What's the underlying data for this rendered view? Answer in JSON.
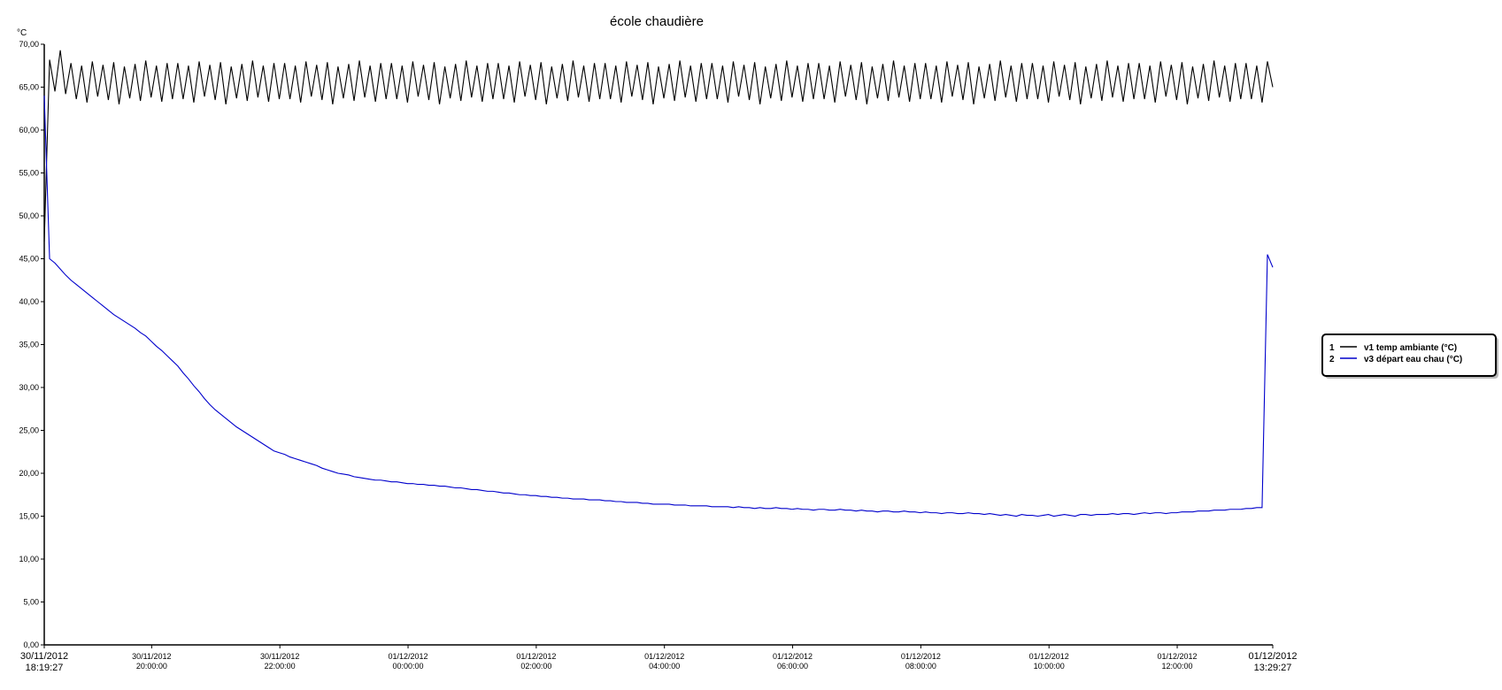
{
  "chart_data": {
    "type": "line",
    "title": "école chaudière",
    "y_label": "°C",
    "xlim": [
      "2012-11-30T18:19:27",
      "2012-12-01T13:29:27"
    ],
    "xticks": [
      {
        "value": "2012-11-30T18:19:27",
        "label": "30/11/2012 18:19:27"
      },
      {
        "value": "2012-11-30T20:00:00",
        "label": "30/11/2012 20:00:00"
      },
      {
        "value": "2012-11-30T22:00:00",
        "label": "30/11/2012 22:00:00"
      },
      {
        "value": "2012-12-01T00:00:00",
        "label": "01/12/2012 00:00:00"
      },
      {
        "value": "2012-12-01T02:00:00",
        "label": "01/12/2012 02:00:00"
      },
      {
        "value": "2012-12-01T04:00:00",
        "label": "01/12/2012 04:00:00"
      },
      {
        "value": "2012-12-01T06:00:00",
        "label": "01/12/2012 06:00:00"
      },
      {
        "value": "2012-12-01T08:00:00",
        "label": "01/12/2012 08:00:00"
      },
      {
        "value": "2012-12-01T10:00:00",
        "label": "01/12/2012 10:00:00"
      },
      {
        "value": "2012-12-01T12:00:00",
        "label": "01/12/2012 12:00:00"
      },
      {
        "value": "2012-12-01T13:29:27",
        "label": "01/12/2012 13:29:27"
      }
    ],
    "ylim": [
      0,
      70
    ],
    "yticks": [
      {
        "value": 0,
        "label": "0,00"
      },
      {
        "value": 5,
        "label": "5,00"
      },
      {
        "value": 10,
        "label": "10,00"
      },
      {
        "value": 15,
        "label": "15,00"
      },
      {
        "value": 20,
        "label": "20,00"
      },
      {
        "value": 25,
        "label": "25,00"
      },
      {
        "value": 30,
        "label": "30,00"
      },
      {
        "value": 35,
        "label": "35,00"
      },
      {
        "value": 40,
        "label": "40,00"
      },
      {
        "value": 45,
        "label": "45,00"
      },
      {
        "value": 50,
        "label": "50,00"
      },
      {
        "value": 55,
        "label": "55,00"
      },
      {
        "value": 60,
        "label": "60,00"
      },
      {
        "value": 65,
        "label": "65,00"
      },
      {
        "value": 70,
        "label": "70,00"
      }
    ],
    "legend": "right",
    "x": [
      "2012-11-30T18:19:27",
      "2012-11-30T18:24:27",
      "2012-11-30T18:29:27",
      "2012-11-30T18:34:27",
      "2012-11-30T18:39:27",
      "2012-11-30T18:44:27",
      "2012-11-30T18:49:27",
      "2012-11-30T18:54:27",
      "2012-11-30T18:59:27",
      "2012-11-30T19:04:27",
      "2012-11-30T19:09:27",
      "2012-11-30T19:14:27",
      "2012-11-30T19:19:27",
      "2012-11-30T19:24:27",
      "2012-11-30T19:29:27",
      "2012-11-30T19:34:27",
      "2012-11-30T19:39:27",
      "2012-11-30T19:44:27",
      "2012-11-30T19:49:27",
      "2012-11-30T19:54:27",
      "2012-11-30T19:59:27",
      "2012-11-30T20:04:27",
      "2012-11-30T20:09:27",
      "2012-11-30T20:14:27",
      "2012-11-30T20:19:27",
      "2012-11-30T20:24:27",
      "2012-11-30T20:29:27",
      "2012-11-30T20:34:27",
      "2012-11-30T20:39:27",
      "2012-11-30T20:44:27",
      "2012-11-30T20:49:27",
      "2012-11-30T20:54:27",
      "2012-11-30T20:59:27",
      "2012-11-30T21:04:27",
      "2012-11-30T21:09:27",
      "2012-11-30T21:14:27",
      "2012-11-30T21:19:27",
      "2012-11-30T21:24:27",
      "2012-11-30T21:29:27",
      "2012-11-30T21:34:27",
      "2012-11-30T21:39:27",
      "2012-11-30T21:44:27",
      "2012-11-30T21:49:27",
      "2012-11-30T21:54:27",
      "2012-11-30T21:59:27",
      "2012-11-30T22:04:27",
      "2012-11-30T22:09:27",
      "2012-11-30T22:14:27",
      "2012-11-30T22:19:27",
      "2012-11-30T22:24:27",
      "2012-11-30T22:29:27",
      "2012-11-30T22:34:27",
      "2012-11-30T22:39:27",
      "2012-11-30T22:44:27",
      "2012-11-30T22:49:27",
      "2012-11-30T22:54:27",
      "2012-11-30T22:59:27",
      "2012-11-30T23:04:27",
      "2012-11-30T23:09:27",
      "2012-11-30T23:14:27",
      "2012-11-30T23:19:27",
      "2012-11-30T23:24:27",
      "2012-11-30T23:29:27",
      "2012-11-30T23:34:27",
      "2012-11-30T23:39:27",
      "2012-11-30T23:44:27",
      "2012-11-30T23:49:27",
      "2012-11-30T23:54:27",
      "2012-11-30T23:59:27",
      "2012-12-01T00:04:27",
      "2012-12-01T00:09:27",
      "2012-12-01T00:14:27",
      "2012-12-01T00:19:27",
      "2012-12-01T00:24:27",
      "2012-12-01T00:29:27",
      "2012-12-01T00:34:27",
      "2012-12-01T00:39:27",
      "2012-12-01T00:44:27",
      "2012-12-01T00:49:27",
      "2012-12-01T00:54:27",
      "2012-12-01T00:59:27",
      "2012-12-01T01:04:27",
      "2012-12-01T01:09:27",
      "2012-12-01T01:14:27",
      "2012-12-01T01:19:27",
      "2012-12-01T01:24:27",
      "2012-12-01T01:29:27",
      "2012-12-01T01:34:27",
      "2012-12-01T01:39:27",
      "2012-12-01T01:44:27",
      "2012-12-01T01:49:27",
      "2012-12-01T01:54:27",
      "2012-12-01T01:59:27",
      "2012-12-01T02:04:27",
      "2012-12-01T02:09:27",
      "2012-12-01T02:14:27",
      "2012-12-01T02:19:27",
      "2012-12-01T02:24:27",
      "2012-12-01T02:29:27",
      "2012-12-01T02:34:27",
      "2012-12-01T02:39:27",
      "2012-12-01T02:44:27",
      "2012-12-01T02:49:27",
      "2012-12-01T02:54:27",
      "2012-12-01T02:59:27",
      "2012-12-01T03:04:27",
      "2012-12-01T03:09:27",
      "2012-12-01T03:14:27",
      "2012-12-01T03:19:27",
      "2012-12-01T03:24:27",
      "2012-12-01T03:29:27",
      "2012-12-01T03:34:27",
      "2012-12-01T03:39:27",
      "2012-12-01T03:44:27",
      "2012-12-01T03:49:27",
      "2012-12-01T03:54:27",
      "2012-12-01T03:59:27",
      "2012-12-01T04:04:27",
      "2012-12-01T04:09:27",
      "2012-12-01T04:14:27",
      "2012-12-01T04:19:27",
      "2012-12-01T04:24:27",
      "2012-12-01T04:29:27",
      "2012-12-01T04:34:27",
      "2012-12-01T04:39:27",
      "2012-12-01T04:44:27",
      "2012-12-01T04:49:27",
      "2012-12-01T04:54:27",
      "2012-12-01T04:59:27",
      "2012-12-01T05:04:27",
      "2012-12-01T05:09:27",
      "2012-12-01T05:14:27",
      "2012-12-01T05:19:27",
      "2012-12-01T05:24:27",
      "2012-12-01T05:29:27",
      "2012-12-01T05:34:27",
      "2012-12-01T05:39:27",
      "2012-12-01T05:44:27",
      "2012-12-01T05:49:27",
      "2012-12-01T05:54:27",
      "2012-12-01T05:59:27",
      "2012-12-01T06:04:27",
      "2012-12-01T06:09:27",
      "2012-12-01T06:14:27",
      "2012-12-01T06:19:27",
      "2012-12-01T06:24:27",
      "2012-12-01T06:29:27",
      "2012-12-01T06:34:27",
      "2012-12-01T06:39:27",
      "2012-12-01T06:44:27",
      "2012-12-01T06:49:27",
      "2012-12-01T06:54:27",
      "2012-12-01T06:59:27",
      "2012-12-01T07:04:27",
      "2012-12-01T07:09:27",
      "2012-12-01T07:14:27",
      "2012-12-01T07:19:27",
      "2012-12-01T07:24:27",
      "2012-12-01T07:29:27",
      "2012-12-01T07:34:27",
      "2012-12-01T07:39:27",
      "2012-12-01T07:44:27",
      "2012-12-01T07:49:27",
      "2012-12-01T07:54:27",
      "2012-12-01T07:59:27",
      "2012-12-01T08:04:27",
      "2012-12-01T08:09:27",
      "2012-12-01T08:14:27",
      "2012-12-01T08:19:27",
      "2012-12-01T08:24:27",
      "2012-12-01T08:29:27",
      "2012-12-01T08:34:27",
      "2012-12-01T08:39:27",
      "2012-12-01T08:44:27",
      "2012-12-01T08:49:27",
      "2012-12-01T08:54:27",
      "2012-12-01T08:59:27",
      "2012-12-01T09:04:27",
      "2012-12-01T09:09:27",
      "2012-12-01T09:14:27",
      "2012-12-01T09:19:27",
      "2012-12-01T09:24:27",
      "2012-12-01T09:29:27",
      "2012-12-01T09:34:27",
      "2012-12-01T09:39:27",
      "2012-12-01T09:44:27",
      "2012-12-01T09:49:27",
      "2012-12-01T09:54:27",
      "2012-12-01T09:59:27",
      "2012-12-01T10:04:27",
      "2012-12-01T10:09:27",
      "2012-12-01T10:14:27",
      "2012-12-01T10:19:27",
      "2012-12-01T10:24:27",
      "2012-12-01T10:29:27",
      "2012-12-01T10:34:27",
      "2012-12-01T10:39:27",
      "2012-12-01T10:44:27",
      "2012-12-01T10:49:27",
      "2012-12-01T10:54:27",
      "2012-12-01T10:59:27",
      "2012-12-01T11:04:27",
      "2012-12-01T11:09:27",
      "2012-12-01T11:14:27",
      "2012-12-01T11:19:27",
      "2012-12-01T11:24:27",
      "2012-12-01T11:29:27",
      "2012-12-01T11:34:27",
      "2012-12-01T11:39:27",
      "2012-12-01T11:44:27",
      "2012-12-01T11:49:27",
      "2012-12-01T11:54:27",
      "2012-12-01T11:59:27",
      "2012-12-01T12:04:27",
      "2012-12-01T12:09:27",
      "2012-12-01T12:14:27",
      "2012-12-01T12:19:27",
      "2012-12-01T12:24:27",
      "2012-12-01T12:29:27",
      "2012-12-01T12:34:27",
      "2012-12-01T12:39:27",
      "2012-12-01T12:44:27",
      "2012-12-01T12:49:27",
      "2012-12-01T12:54:27",
      "2012-12-01T12:59:27",
      "2012-12-01T13:04:27",
      "2012-12-01T13:09:27",
      "2012-12-01T13:14:27",
      "2012-12-01T13:19:27",
      "2012-12-01T13:24:27",
      "2012-12-01T13:29:27"
    ],
    "series": [
      {
        "index": "1",
        "name": "v1 temp ambiante (°C)",
        "color": "#000000",
        "values": [
          47,
          68.2,
          64.5,
          69.3,
          64.2,
          67.8,
          63.6,
          67.5,
          63.2,
          68.0,
          63.9,
          67.6,
          63.5,
          67.9,
          63.0,
          67.4,
          63.7,
          67.7,
          63.4,
          68.1,
          63.8,
          67.5,
          63.3,
          67.8,
          63.6,
          67.8,
          63.6,
          67.5,
          63.2,
          68.0,
          63.9,
          67.6,
          63.5,
          67.9,
          63.0,
          67.4,
          63.7,
          67.7,
          63.4,
          68.1,
          63.8,
          67.5,
          63.3,
          67.8,
          63.6,
          67.8,
          63.6,
          67.5,
          63.2,
          68.0,
          63.9,
          67.6,
          63.5,
          67.9,
          63.0,
          67.4,
          63.7,
          67.7,
          63.4,
          68.1,
          63.8,
          67.5,
          63.3,
          67.8,
          63.6,
          67.8,
          63.6,
          67.5,
          63.2,
          68.0,
          63.9,
          67.6,
          63.5,
          67.9,
          63.0,
          67.4,
          63.7,
          67.7,
          63.4,
          68.1,
          63.8,
          67.5,
          63.3,
          67.8,
          63.6,
          67.8,
          63.6,
          67.5,
          63.2,
          68.0,
          63.9,
          67.6,
          63.5,
          67.9,
          63.0,
          67.4,
          63.7,
          67.7,
          63.4,
          68.1,
          63.8,
          67.5,
          63.3,
          67.8,
          63.6,
          67.8,
          63.6,
          67.5,
          63.2,
          68.0,
          63.9,
          67.6,
          63.5,
          67.9,
          63.0,
          67.4,
          63.7,
          67.7,
          63.4,
          68.1,
          63.8,
          67.5,
          63.3,
          67.8,
          63.6,
          67.8,
          63.6,
          67.5,
          63.2,
          68.0,
          63.9,
          67.6,
          63.5,
          67.9,
          63.0,
          67.4,
          63.7,
          67.7,
          63.4,
          68.1,
          63.8,
          67.5,
          63.3,
          67.8,
          63.6,
          67.8,
          63.6,
          67.5,
          63.2,
          68.0,
          63.9,
          67.6,
          63.5,
          67.9,
          63.0,
          67.4,
          63.7,
          67.7,
          63.4,
          68.1,
          63.8,
          67.5,
          63.3,
          67.8,
          63.6,
          67.8,
          63.6,
          67.5,
          63.2,
          68.0,
          63.9,
          67.6,
          63.5,
          67.9,
          63.0,
          67.4,
          63.7,
          67.7,
          63.4,
          68.1,
          63.8,
          67.5,
          63.3,
          67.8,
          63.6,
          67.8,
          63.6,
          67.5,
          63.2,
          68.0,
          63.9,
          67.6,
          63.5,
          67.9,
          63.0,
          67.4,
          63.7,
          67.7,
          63.4,
          68.1,
          63.8,
          67.5,
          63.3,
          67.8,
          63.6,
          67.8,
          63.6,
          67.5,
          63.2,
          68.0,
          63.9,
          67.6,
          63.5,
          67.9,
          63.0,
          67.4,
          63.7,
          67.7,
          63.4,
          68.1,
          63.8,
          67.5,
          63.3,
          67.8,
          63.6,
          67.8,
          63.6,
          67.5,
          63.2,
          68.0,
          65.0
        ]
      },
      {
        "index": "2",
        "name": "v3 départ eau chau (°C)",
        "color": "#0000cc",
        "values": [
          64,
          45,
          44.5,
          43.8,
          43.1,
          42.5,
          42.0,
          41.5,
          41.0,
          40.5,
          40.0,
          39.5,
          39.0,
          38.5,
          38.1,
          37.7,
          37.3,
          36.9,
          36.4,
          36.0,
          35.4,
          34.8,
          34.3,
          33.7,
          33.1,
          32.5,
          31.7,
          31.0,
          30.2,
          29.5,
          28.7,
          28.0,
          27.4,
          26.9,
          26.4,
          25.9,
          25.4,
          25.0,
          24.6,
          24.2,
          23.8,
          23.4,
          23.0,
          22.6,
          22.4,
          22.2,
          21.9,
          21.7,
          21.5,
          21.3,
          21.1,
          20.9,
          20.6,
          20.4,
          20.2,
          20.0,
          19.9,
          19.8,
          19.6,
          19.5,
          19.4,
          19.3,
          19.2,
          19.2,
          19.1,
          19.0,
          19.0,
          18.9,
          18.8,
          18.8,
          18.7,
          18.7,
          18.6,
          18.6,
          18.5,
          18.5,
          18.4,
          18.3,
          18.3,
          18.2,
          18.1,
          18.1,
          18.0,
          17.9,
          17.9,
          17.8,
          17.7,
          17.7,
          17.6,
          17.5,
          17.5,
          17.4,
          17.4,
          17.3,
          17.3,
          17.2,
          17.2,
          17.1,
          17.1,
          17.0,
          17.0,
          17.0,
          16.9,
          16.9,
          16.9,
          16.8,
          16.8,
          16.7,
          16.7,
          16.6,
          16.6,
          16.6,
          16.5,
          16.5,
          16.4,
          16.4,
          16.4,
          16.4,
          16.3,
          16.3,
          16.3,
          16.2,
          16.2,
          16.2,
          16.2,
          16.1,
          16.1,
          16.1,
          16.1,
          16.0,
          16.1,
          16.0,
          16.0,
          15.9,
          16.0,
          15.9,
          15.9,
          16.0,
          15.9,
          15.9,
          15.8,
          15.9,
          15.8,
          15.8,
          15.7,
          15.8,
          15.8,
          15.7,
          15.7,
          15.8,
          15.7,
          15.7,
          15.6,
          15.7,
          15.6,
          15.6,
          15.5,
          15.6,
          15.6,
          15.5,
          15.5,
          15.6,
          15.5,
          15.5,
          15.4,
          15.5,
          15.4,
          15.4,
          15.3,
          15.4,
          15.4,
          15.3,
          15.3,
          15.4,
          15.3,
          15.3,
          15.2,
          15.3,
          15.2,
          15.1,
          15.2,
          15.1,
          15.0,
          15.2,
          15.1,
          15.1,
          15.0,
          15.1,
          15.2,
          15.0,
          15.1,
          15.2,
          15.1,
          15.0,
          15.2,
          15.2,
          15.1,
          15.2,
          15.2,
          15.2,
          15.3,
          15.2,
          15.3,
          15.3,
          15.2,
          15.3,
          15.4,
          15.3,
          15.4,
          15.4,
          15.3,
          15.4,
          15.4,
          15.5,
          15.5,
          15.5,
          15.6,
          15.6,
          15.6,
          15.7,
          15.7,
          15.7,
          15.8,
          15.8,
          15.8,
          15.9,
          15.9,
          16.0,
          16.0,
          45.5,
          44
        ]
      }
    ]
  }
}
